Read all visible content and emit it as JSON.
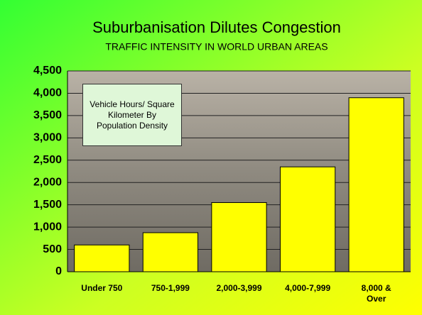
{
  "chart_data": {
    "type": "bar",
    "title": "Suburbanisation Dilutes Congestion",
    "subtitle": "TRAFFIC INTENSITY IN WORLD URBAN AREAS",
    "annotation": "Vehicle Hours/ Square Kilometer By Population Density",
    "categories": [
      "Under 750",
      "750-1,999",
      "2,000-3,999",
      "4,000-7,999",
      "8,000 & Over"
    ],
    "values": [
      600,
      875,
      1550,
      2350,
      3900
    ],
    "color": "#ffff00",
    "ylim": [
      0,
      4500
    ],
    "yticks": [
      0,
      500,
      {
        "value": 1000,
        "label": "1,000"
      },
      {
        "value": 1500,
        "label": "1,500"
      },
      {
        "value": 2000,
        "label": "2,000"
      },
      {
        "value": 2500,
        "label": "2,500"
      },
      {
        "value": 3000,
        "label": "3,000"
      },
      {
        "value": 3500,
        "label": "3,500"
      },
      {
        "value": 4000,
        "label": "4,000"
      },
      {
        "value": 4500,
        "label": "4,500"
      }
    ],
    "grid": true
  }
}
